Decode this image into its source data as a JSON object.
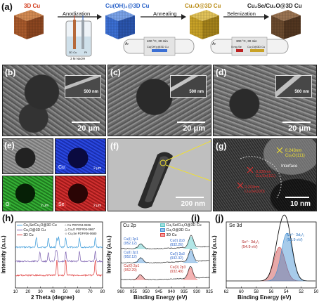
{
  "panel_a": {
    "label": "(a)",
    "stages": [
      "3D Cu",
      "Cu(OH)₂@3D Cu",
      "Cu₂O@3D Cu",
      "Cu₂Se/Cu₂O@3D Cu"
    ],
    "steps": [
      "Anodization",
      "Annealing",
      "Selenization"
    ],
    "cell_electrodes": [
      "3D Cu",
      "Pt"
    ],
    "cell_solution": "3 M NaOH",
    "anneal_cond": "400 °C, 30 min",
    "anneal_gas": "Ar",
    "anneal_sample": "Cu(OH)₂@3D Cu",
    "selen_cond": "300 °C, 30 min",
    "selen_gas": "Ar",
    "selen_source": "5 mg Se",
    "selen_sample": "Cu₂O@3D Cu",
    "colors": {
      "cu": "#b5693a",
      "cuoh": "#3b6fd4",
      "cu2o": "#c9a227",
      "cu2se": "#6b4a2e",
      "stage_text_cu": "#d23b1b",
      "stage_text_oh": "#2a63c9",
      "stage_text_o": "#b98a13",
      "stage_text_se": "#222222"
    }
  },
  "sem": {
    "b": {
      "label": "(b)",
      "scale": "20 μm",
      "inset_scale": "500 nm"
    },
    "c": {
      "label": "(c)",
      "scale": "20 μm",
      "inset_scale": "500 nm"
    },
    "d": {
      "label": "(d)",
      "scale": "20 μm",
      "inset_scale": "500 nm"
    }
  },
  "panel_e": {
    "label": "(e)",
    "maps": [
      {
        "element": "",
        "scale": ""
      },
      {
        "element": "Cu",
        "scale": "2 μm"
      },
      {
        "element": "O",
        "scale": "2 μm"
      },
      {
        "element": "Se",
        "scale": "2 μm"
      }
    ]
  },
  "panel_f": {
    "label": "(f)",
    "scale": "200 nm"
  },
  "panel_g": {
    "label": "(g)",
    "scale": "10 nm",
    "ann_top": "0.243nm",
    "ann_top2": "Cu₂O(111)",
    "interface": "Interface",
    "ann_mid": "0.336nm",
    "ann_mid2": "Cu₂Se(111)",
    "ann_bot": "0.203nm",
    "ann_bot2": "Cu₂Se(220)"
  },
  "panel_h": {
    "label": "(h)",
    "legend": [
      "Cu₂Se/Cu₂O@3D Cu",
      "Cu₂O@3D Cu",
      "3D Cu"
    ],
    "ref_legend": [
      "Cu PDF#04-0836",
      "Cu₂O PDF#05-0667",
      "Cu₂Se PDF#06-0680"
    ],
    "xlabel": "2 Theta (degree)",
    "ylabel": "Intensity (a.u.)",
    "xticks": [
      "10",
      "20",
      "30",
      "40",
      "50",
      "60",
      "70",
      "80"
    ]
  },
  "panel_i": {
    "label": "(i)",
    "title": "Cu 2p",
    "legend": [
      "Cu₂Se/Cu₂O@3D Cu",
      "Cu₂O@3D Cu",
      "3D Cu"
    ],
    "peaks_left": [
      [
        "Cu(I) 2p1",
        "(952.12)"
      ],
      [
        "Cu(I) 2p1",
        "(952.12)"
      ],
      [
        "Cu(0) 2p1",
        "(952.29)"
      ]
    ],
    "peaks_right": [
      [
        "Cu(I) 2p3",
        "(932.26)"
      ],
      [
        "Cu(I) 2p3",
        "(932.32)"
      ],
      [
        "Cu(0) 2p3",
        "(932.49)"
      ]
    ],
    "xlabel": "Binding Energy (eV)",
    "ylabel": "Intensity (a.u.)",
    "xticks": [
      "960",
      "955",
      "950",
      "945",
      "940",
      "935",
      "930",
      "925"
    ]
  },
  "panel_j": {
    "label": "(j)",
    "title": "Se 3d",
    "peak_left": [
      "Se²⁻ 3d₃/₂",
      "(54.9 eV)"
    ],
    "peak_right": [
      "Se²⁻ 3d₅/₂",
      "(53.9 eV)"
    ],
    "xlabel": "Binding Energy (eV)",
    "ylabel": "Intensity (a.u.)",
    "xticks": [
      "62",
      "60",
      "58",
      "56",
      "54",
      "52",
      "50"
    ]
  },
  "chart_data": [
    {
      "type": "line",
      "xlabel": "2 Theta (degree)",
      "ylabel": "Intensity (a.u.)",
      "xlim": [
        10,
        80
      ],
      "series": [
        {
          "name": "Cu₂Se/Cu₂O@3D Cu",
          "color": "#3b9ad9",
          "peaks": [
            26.8,
            36.4,
            43.3,
            44.7,
            50.4,
            61.4,
            74.1
          ]
        },
        {
          "name": "Cu₂O@3D Cu",
          "color": "#7b5fb0",
          "peaks": [
            29.6,
            36.4,
            42.3,
            43.3,
            50.4,
            61.4,
            74.1
          ]
        },
        {
          "name": "3D Cu",
          "color": "#e03b3b",
          "peaks": [
            43.3,
            50.4,
            74.1
          ]
        }
      ]
    },
    {
      "type": "line",
      "title": "Cu 2p",
      "xlabel": "Binding Energy (eV)",
      "ylabel": "Intensity (a.u.)",
      "xlim": [
        960,
        925
      ],
      "series": [
        {
          "name": "Cu₂Se/Cu₂O@3D Cu",
          "color": "#5cc6c6",
          "peaks": [
            952.12,
            932.26
          ]
        },
        {
          "name": "Cu₂O@3D Cu",
          "color": "#3b8bd0",
          "peaks": [
            952.12,
            932.32
          ]
        },
        {
          "name": "3D Cu",
          "color": "#e03b3b",
          "peaks": [
            952.29,
            932.49
          ]
        }
      ]
    },
    {
      "type": "area",
      "title": "Se 3d",
      "xlabel": "Binding Energy (eV)",
      "ylabel": "Intensity (a.u.)",
      "xlim": [
        62,
        50
      ],
      "series": [
        {
          "name": "Se²⁻ 3d₃/₂",
          "color": "#c94040",
          "center": 54.9
        },
        {
          "name": "Se²⁻ 3d₅/₂",
          "color": "#3b8bd0",
          "center": 53.9
        }
      ]
    }
  ]
}
